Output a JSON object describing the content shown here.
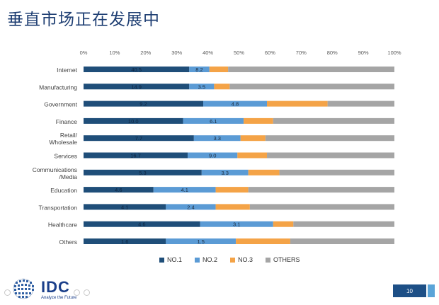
{
  "title": "垂直市场正在发展中",
  "chart_data": {
    "type": "bar",
    "orientation": "horizontal",
    "stacked": true,
    "percent_stacked": true,
    "categories": [
      "Internet",
      "Manufacturing",
      "Government",
      "Finance",
      "Retail/\nWholesale",
      "Services",
      "Communications\n/Media",
      "Education",
      "Transportation",
      "Healthcare",
      "Others"
    ],
    "x_ticks": [
      "0%",
      "10%",
      "20%",
      "30%",
      "40%",
      "50%",
      "60%",
      "70%",
      "80%",
      "90%",
      "100%"
    ],
    "xlim": [
      0,
      100
    ],
    "series": [
      {
        "name": "NO.1",
        "color": "#1f4e79",
        "values": [
          34,
          34,
          38.5,
          32,
          35.5,
          33.5,
          38,
          22.5,
          26.5,
          37.5,
          26.5
        ],
        "labels": [
          "40.5",
          "14.9",
          "9.2",
          "10.0",
          "7.7",
          "16.7",
          "5.3",
          "4.6",
          "4.1",
          "4.6",
          "1.6"
        ]
      },
      {
        "name": "NO.2",
        "color": "#5b9bd5",
        "values": [
          6.5,
          8,
          20.5,
          19.5,
          15,
          16,
          15,
          20,
          16,
          23.5,
          22.5
        ],
        "labels": [
          "8.2",
          "3.5",
          "4.8",
          "6.1",
          "3.3",
          "9.0",
          "3.3",
          "4.1",
          "2.4",
          "3.1",
          "1.5"
        ]
      },
      {
        "name": "NO.3",
        "color": "#f4a347",
        "values": [
          6,
          5,
          19.5,
          9.5,
          8,
          9.5,
          10,
          10.5,
          11,
          6.5,
          17.5
        ],
        "labels": [
          "",
          "",
          "",
          "",
          "",
          "",
          "",
          "",
          "",
          "",
          ""
        ]
      },
      {
        "name": "OTHERS",
        "color": "#a5a5a5",
        "values": [
          53.5,
          53,
          21.5,
          39,
          41.5,
          41,
          37,
          47,
          46.5,
          32.5,
          33.5
        ],
        "labels": [
          "",
          "",
          "",
          "",
          "",
          "",
          "",
          "",
          "",
          "",
          ""
        ]
      }
    ],
    "legend": "bottom",
    "grid": false
  },
  "footer": {
    "logo_text": "IDC",
    "logo_tagline": "Analyze the Future",
    "page_number": "10"
  }
}
